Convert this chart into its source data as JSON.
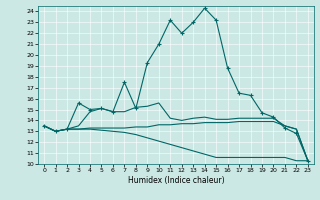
{
  "xlabel": "Humidex (Indice chaleur)",
  "xlim": [
    -0.5,
    23.5
  ],
  "ylim": [
    10,
    24.5
  ],
  "yticks": [
    10,
    11,
    12,
    13,
    14,
    15,
    16,
    17,
    18,
    19,
    20,
    21,
    22,
    23,
    24
  ],
  "xticks": [
    0,
    1,
    2,
    3,
    4,
    5,
    6,
    7,
    8,
    9,
    10,
    11,
    12,
    13,
    14,
    15,
    16,
    17,
    18,
    19,
    20,
    21,
    22,
    23
  ],
  "bg_color": "#cce8e4",
  "line_color": "#006666",
  "lines": [
    {
      "x": [
        0,
        1,
        2,
        3,
        4,
        5,
        6,
        7,
        8,
        9,
        10,
        11,
        12,
        13,
        14,
        15,
        16,
        17,
        18,
        19,
        20,
        21,
        22,
        23
      ],
      "y": [
        13.5,
        13.0,
        13.2,
        15.6,
        15.0,
        15.1,
        14.8,
        17.5,
        15.1,
        19.3,
        21.0,
        23.2,
        22.0,
        23.0,
        24.3,
        23.2,
        18.8,
        16.5,
        16.3,
        14.7,
        14.3,
        13.3,
        12.8,
        10.3
      ],
      "marker": "+"
    },
    {
      "x": [
        0,
        1,
        2,
        3,
        4,
        5,
        6,
        7,
        8,
        9,
        10,
        11,
        12,
        13,
        14,
        15,
        16,
        17,
        18,
        19,
        20,
        21,
        22,
        23
      ],
      "y": [
        13.5,
        13.0,
        13.2,
        13.5,
        14.8,
        15.1,
        14.8,
        14.8,
        15.2,
        15.3,
        15.6,
        14.2,
        14.0,
        14.2,
        14.3,
        14.1,
        14.1,
        14.2,
        14.2,
        14.2,
        14.2,
        13.5,
        13.2,
        10.3
      ],
      "marker": null
    },
    {
      "x": [
        0,
        1,
        2,
        3,
        4,
        5,
        6,
        7,
        8,
        9,
        10,
        11,
        12,
        13,
        14,
        15,
        16,
        17,
        18,
        19,
        20,
        21,
        22,
        23
      ],
      "y": [
        13.5,
        13.0,
        13.2,
        13.2,
        13.3,
        13.3,
        13.3,
        13.3,
        13.4,
        13.4,
        13.6,
        13.6,
        13.7,
        13.7,
        13.8,
        13.8,
        13.8,
        13.9,
        13.9,
        13.9,
        13.9,
        13.5,
        13.2,
        10.3
      ],
      "marker": null
    },
    {
      "x": [
        0,
        1,
        2,
        3,
        4,
        5,
        6,
        7,
        8,
        9,
        10,
        11,
        12,
        13,
        14,
        15,
        16,
        17,
        18,
        19,
        20,
        21,
        22,
        23
      ],
      "y": [
        13.5,
        13.0,
        13.2,
        13.2,
        13.2,
        13.1,
        13.0,
        12.9,
        12.7,
        12.4,
        12.1,
        11.8,
        11.5,
        11.2,
        10.9,
        10.6,
        10.6,
        10.6,
        10.6,
        10.6,
        10.6,
        10.6,
        10.3,
        10.3
      ],
      "marker": null
    }
  ]
}
